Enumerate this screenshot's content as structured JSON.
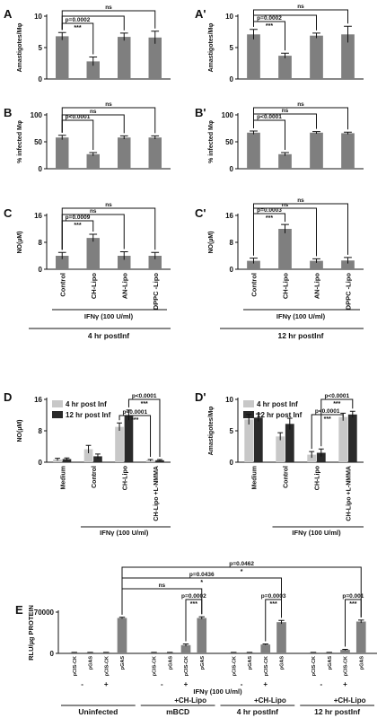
{
  "chart_data": [
    {
      "type": "bar",
      "panel": "A",
      "y_label": "Amastigotes/Mφ",
      "values": [
        6.8,
        2.8,
        6.7,
        6.6
      ],
      "errors": [
        0.6,
        0.7,
        0.6,
        1.0
      ],
      "color": "#7f7f7f",
      "ylim": [
        0,
        10
      ],
      "yticks": [
        0,
        5,
        10
      ],
      "annotations": [
        "p=0.0002",
        "***",
        "ns"
      ]
    },
    {
      "type": "bar",
      "panel": "A'",
      "y_label": "Amastigotes/Mφ",
      "values": [
        7.1,
        3.7,
        6.9,
        7.1
      ],
      "errors": [
        0.8,
        0.4,
        0.4,
        1.3
      ],
      "color": "#7f7f7f",
      "ylim": [
        0,
        10
      ],
      "yticks": [
        0,
        5,
        10
      ],
      "annotations": [
        "p=0.0002",
        "***",
        "ns"
      ]
    },
    {
      "type": "bar",
      "panel": "B",
      "y_label": "% infected Mφ",
      "values": [
        58,
        27,
        58,
        58
      ],
      "errors": [
        4,
        3,
        3,
        3
      ],
      "color": "#7f7f7f",
      "ylim": [
        0,
        100
      ],
      "yticks": [
        0,
        50,
        100
      ],
      "annotations": [
        "p<0.0001",
        "ns",
        "ns"
      ]
    },
    {
      "type": "bar",
      "panel": "B'",
      "y_label": "% infected Mφ",
      "values": [
        67,
        27,
        67,
        66
      ],
      "errors": [
        3,
        3,
        2,
        2
      ],
      "color": "#7f7f7f",
      "ylim": [
        0,
        100
      ],
      "yticks": [
        0,
        50,
        100
      ],
      "annotations": [
        "p<0.0001",
        "ns",
        "ns"
      ]
    },
    {
      "type": "bar",
      "panel": "C",
      "y_label": "NO(µM)",
      "categories": [
        "Control",
        "CH-Lipo",
        "AN-Lipo",
        "DPPC -Lipo"
      ],
      "values": [
        4,
        9.3,
        4,
        4
      ],
      "errors": [
        1,
        1.1,
        1.2,
        1
      ],
      "color": "#7f7f7f",
      "ylim": [
        0,
        16
      ],
      "yticks": [
        0,
        8,
        16
      ],
      "annotations": [
        "p=0.0009",
        "***",
        "ns",
        "ns"
      ],
      "ifn_label": "IFNγ (100 U/ml)",
      "time_label": "4 hr postInf"
    },
    {
      "type": "bar",
      "panel": "C'",
      "y_label": "NO(µM)",
      "categories": [
        "Control",
        "CH-Lipo",
        "AN-Lipo",
        "DPPC -Lipo"
      ],
      "values": [
        2.5,
        12,
        2.5,
        2.6
      ],
      "errors": [
        0.8,
        1.3,
        0.6,
        0.9
      ],
      "color": "#7f7f7f",
      "ylim": [
        0,
        16
      ],
      "yticks": [
        0,
        8,
        16
      ],
      "annotations": [
        "p=0.0003",
        "***",
        "ns",
        "ns"
      ],
      "ifn_label": "IFNγ (100 U/ml)",
      "time_label": "12 hr postInf"
    },
    {
      "type": "grouped_bar",
      "panel": "D",
      "y_label": "NO(µM)",
      "categories": [
        "Medium",
        "Control",
        "CH-Lipo",
        "CH-Lipo +L-NMMA"
      ],
      "series": [
        {
          "name": "4 hr post Inf",
          "color": "#c8c8c8",
          "values": [
            0.7,
            3.3,
            9,
            0.5
          ],
          "errors": [
            0.3,
            1,
            1,
            0.2
          ]
        },
        {
          "name": "12 hr post Inf",
          "color": "#2a2a2a",
          "values": [
            0.8,
            1.5,
            12,
            0.5
          ],
          "errors": [
            0.3,
            0.6,
            1.3,
            0.2
          ]
        }
      ],
      "ylim": [
        0,
        16
      ],
      "yticks": [
        0,
        8,
        16
      ],
      "annotations": [
        "p<0.0001",
        "***",
        "p<0.0001",
        "***"
      ],
      "ifn_label": "IFNγ (100 U/ml)"
    },
    {
      "type": "grouped_bar",
      "panel": "D'",
      "y_label": "Amastigotes/Mφ",
      "categories": [
        "Medium",
        "Control",
        "CH-Lipo",
        "CH-Lipo +L-NMMA"
      ],
      "series": [
        {
          "name": "4 hr post Inf",
          "color": "#c8c8c8",
          "values": [
            6.8,
            4.1,
            1.2,
            7.2
          ],
          "errors": [
            0.8,
            0.6,
            0.5,
            0.6
          ]
        },
        {
          "name": "12 hr post Inf",
          "color": "#2a2a2a",
          "values": [
            7.1,
            6.1,
            1.5,
            7.6
          ],
          "errors": [
            0.6,
            0.9,
            0.6,
            0.5
          ]
        }
      ],
      "ylim": [
        0,
        10
      ],
      "yticks": [
        0,
        5,
        10
      ],
      "annotations": [
        "p<0.0001",
        "***",
        "p<0.0001",
        "***"
      ],
      "ifn_label": "IFNγ (100 U/ml)"
    },
    {
      "type": "bar_groups",
      "panel": "E",
      "y_label": "RLU/µg PROTEIN",
      "categories": [
        "pCIS-CK",
        "pGAS",
        "pCIS-CK",
        "pGAS",
        "pCIS-CK",
        "pGAS",
        "pCIS-CK",
        "pGAS",
        "pCIS-CK",
        "pGAS",
        "pCIS-CK",
        "pGAS",
        "pCIS-CK",
        "pGAS",
        "pCIS-CK",
        "pGAS"
      ],
      "values": [
        1500,
        1500,
        1500,
        60000,
        1500,
        1500,
        14000,
        60000,
        1500,
        1500,
        15000,
        53000,
        1500,
        1500,
        6000,
        54000
      ],
      "errors": [
        200,
        200,
        200,
        1200,
        200,
        200,
        2000,
        2000,
        200,
        200,
        1000,
        3000,
        200,
        200,
        800,
        2500
      ],
      "color": "#808080",
      "ylim": [
        0,
        70000
      ],
      "yticks": [
        0,
        70000
      ],
      "ifn_signs": [
        "-",
        "+",
        "-",
        "+",
        "-",
        "+",
        "-",
        "+"
      ],
      "ifn_label": "IFNγ (100 U/ml)",
      "groups": [
        {
          "label": "Uninfected"
        },
        {
          "label": "mBCD",
          "treatment": "+CH-Lipo"
        },
        {
          "label": "4 hr postInf",
          "treatment": "+CH-Lipo"
        },
        {
          "label": "12 hr postInf",
          "treatment": "+CH-Lipo"
        }
      ],
      "annotations": [
        "ns",
        "p=0.0002",
        "***",
        "p=0.0436",
        "*",
        "p=0.0003",
        "***",
        "p=0.0462",
        "*",
        "p=0.001",
        "***"
      ]
    }
  ]
}
